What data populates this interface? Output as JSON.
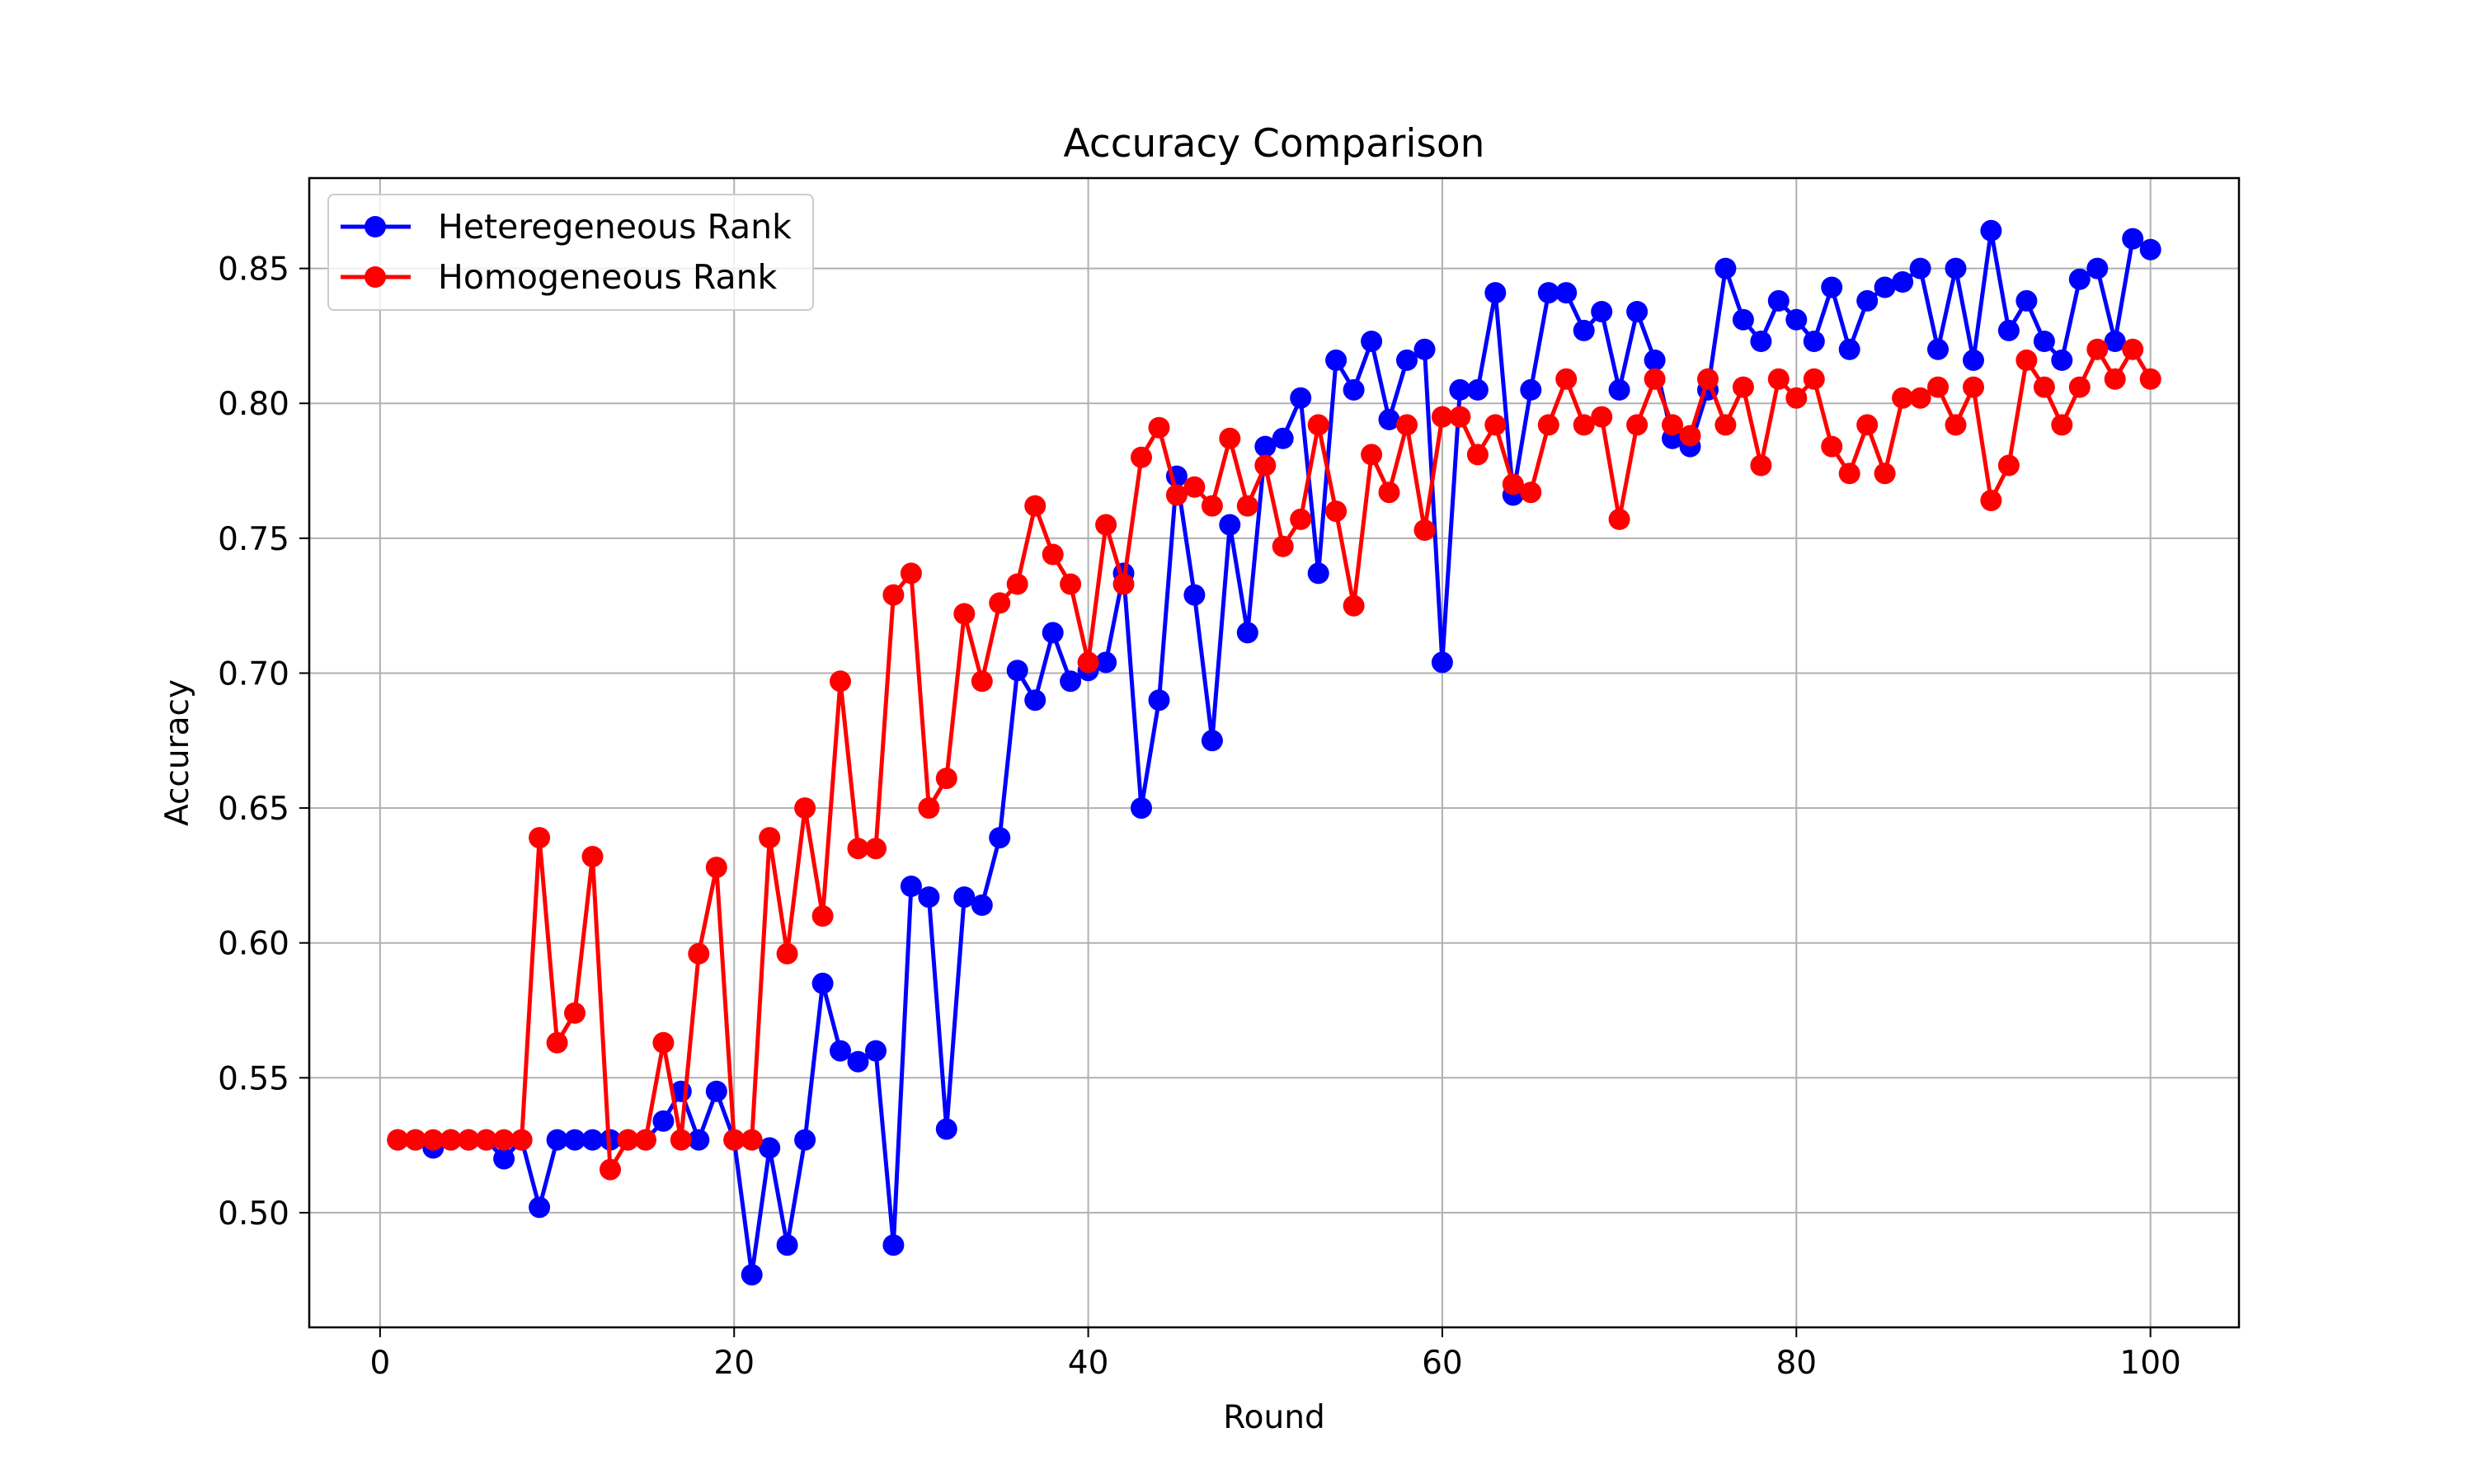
{
  "chart_data": {
    "type": "line",
    "title": "Accuracy Comparison",
    "xlabel": "Round",
    "ylabel": "Accuracy",
    "xlim": [
      -4,
      105
    ],
    "ylim": [
      0.4575,
      0.8835
    ],
    "grid": true,
    "legend_position": "upper-left",
    "x_ticks": [
      {
        "value": 0,
        "label": "0"
      },
      {
        "value": 20,
        "label": "20"
      },
      {
        "value": 40,
        "label": "40"
      },
      {
        "value": 60,
        "label": "60"
      },
      {
        "value": 80,
        "label": "80"
      },
      {
        "value": 100,
        "label": "100"
      }
    ],
    "y_ticks": [
      {
        "value": 0.5,
        "label": "0.50"
      },
      {
        "value": 0.55,
        "label": "0.55"
      },
      {
        "value": 0.6,
        "label": "0.60"
      },
      {
        "value": 0.65,
        "label": "0.65"
      },
      {
        "value": 0.7,
        "label": "0.70"
      },
      {
        "value": 0.75,
        "label": "0.75"
      },
      {
        "value": 0.8,
        "label": "0.80"
      },
      {
        "value": 0.85,
        "label": "0.85"
      }
    ],
    "x": [
      1,
      2,
      3,
      4,
      5,
      6,
      7,
      8,
      9,
      10,
      11,
      12,
      13,
      14,
      15,
      16,
      17,
      18,
      19,
      20,
      21,
      22,
      23,
      24,
      25,
      26,
      27,
      28,
      29,
      30,
      31,
      32,
      33,
      34,
      35,
      36,
      37,
      38,
      39,
      40,
      41,
      42,
      43,
      44,
      45,
      46,
      47,
      48,
      49,
      50,
      51,
      52,
      53,
      54,
      55,
      56,
      57,
      58,
      59,
      60,
      61,
      62,
      63,
      64,
      65,
      66,
      67,
      68,
      69,
      70,
      71,
      72,
      73,
      74,
      75,
      76,
      77,
      78,
      79,
      80,
      81,
      82,
      83,
      84,
      85,
      86,
      87,
      88,
      89,
      90,
      91,
      92,
      93,
      94,
      95,
      96,
      97,
      98,
      99,
      100
    ],
    "series": [
      {
        "name": "Heteregeneous Rank",
        "color": "#0000ff",
        "values": [
          0.527,
          0.527,
          0.524,
          0.527,
          0.527,
          0.527,
          0.52,
          0.527,
          0.502,
          0.527,
          0.527,
          0.527,
          0.527,
          0.527,
          0.527,
          0.534,
          0.545,
          0.527,
          0.545,
          0.527,
          0.477,
          0.524,
          0.488,
          0.527,
          0.585,
          0.56,
          0.556,
          0.56,
          0.488,
          0.621,
          0.617,
          0.531,
          0.617,
          0.614,
          0.639,
          0.701,
          0.69,
          0.715,
          0.697,
          0.701,
          0.704,
          0.737,
          0.65,
          0.69,
          0.773,
          0.729,
          0.675,
          0.755,
          0.715,
          0.784,
          0.787,
          0.802,
          0.737,
          0.816,
          0.805,
          0.823,
          0.794,
          0.816,
          0.82,
          0.704,
          0.805,
          0.805,
          0.841,
          0.766,
          0.805,
          0.841,
          0.841,
          0.827,
          0.834,
          0.805,
          0.834,
          0.816,
          0.787,
          0.784,
          0.805,
          0.85,
          0.831,
          0.823,
          0.838,
          0.831,
          0.823,
          0.843,
          0.82,
          0.838,
          0.843,
          0.845,
          0.85,
          0.82,
          0.85,
          0.816,
          0.864,
          0.827,
          0.838,
          0.823,
          0.816,
          0.846,
          0.85,
          0.823,
          0.861,
          0.857
        ]
      },
      {
        "name": "Homogeneous Rank",
        "color": "#ff0000",
        "values": [
          0.527,
          0.527,
          0.527,
          0.527,
          0.527,
          0.527,
          0.527,
          0.527,
          0.639,
          0.563,
          0.574,
          0.632,
          0.516,
          0.527,
          0.527,
          0.563,
          0.527,
          0.596,
          0.628,
          0.527,
          0.527,
          0.639,
          0.596,
          0.65,
          0.61,
          0.697,
          0.635,
          0.635,
          0.729,
          0.737,
          0.65,
          0.661,
          0.722,
          0.697,
          0.726,
          0.733,
          0.762,
          0.744,
          0.733,
          0.704,
          0.755,
          0.733,
          0.78,
          0.791,
          0.766,
          0.769,
          0.762,
          0.787,
          0.762,
          0.777,
          0.747,
          0.757,
          0.792,
          0.76,
          0.725,
          0.781,
          0.767,
          0.792,
          0.753,
          0.795,
          0.795,
          0.781,
          0.792,
          0.77,
          0.767,
          0.792,
          0.809,
          0.792,
          0.795,
          0.757,
          0.792,
          0.809,
          0.792,
          0.788,
          0.809,
          0.792,
          0.806,
          0.777,
          0.809,
          0.802,
          0.809,
          0.784,
          0.774,
          0.792,
          0.774,
          0.802,
          0.802,
          0.806,
          0.792,
          0.806,
          0.764,
          0.777,
          0.816,
          0.806,
          0.792,
          0.806,
          0.82,
          0.809,
          0.82,
          0.809
        ]
      }
    ]
  }
}
